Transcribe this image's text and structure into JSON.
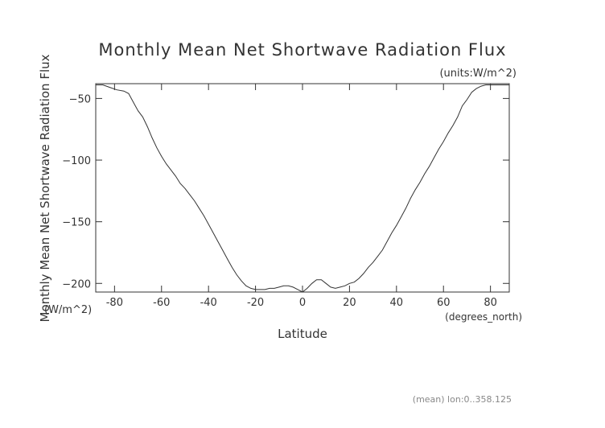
{
  "chart_data": {
    "type": "line",
    "title": "Monthly Mean Net Shortwave Radiation Flux",
    "units_note": "(units:W/m^2)",
    "ylabel": "Monthly Mean Net Shortwave Radiation Flux",
    "ylabel_units": "(W/m^2)",
    "xlabel": "Latitude",
    "xunits": "(degrees_north)",
    "footnote": "(mean) lon:0..358.125",
    "xlim": [
      -88,
      88
    ],
    "ylim": [
      -207,
      -38
    ],
    "x_ticks": [
      -80,
      -60,
      -40,
      -20,
      0,
      20,
      40,
      60,
      80
    ],
    "y_ticks": [
      -50,
      -100,
      -150,
      -200
    ],
    "grid": false,
    "series": [
      {
        "x": [
          -88,
          -85,
          -82,
          -79,
          -76,
          -74,
          -72,
          -70,
          -68,
          -66,
          -64,
          -62,
          -60,
          -58,
          -56,
          -54,
          -52,
          -50,
          -48,
          -46,
          -44,
          -42,
          -40,
          -38,
          -36,
          -34,
          -32,
          -30,
          -28,
          -26,
          -24,
          -22,
          -20,
          -18,
          -16,
          -14,
          -12,
          -10,
          -8,
          -6,
          -4,
          -2,
          0,
          2,
          4,
          6,
          8,
          10,
          12,
          14,
          16,
          18,
          20,
          22,
          24,
          26,
          28,
          30,
          32,
          34,
          36,
          38,
          40,
          42,
          44,
          46,
          48,
          50,
          52,
          54,
          56,
          58,
          60,
          62,
          64,
          66,
          68,
          70,
          72,
          74,
          76,
          78,
          80,
          82,
          84,
          86,
          88
        ],
        "y": [
          -39,
          -39,
          -41,
          -43,
          -44,
          -46,
          -53,
          -60,
          -65,
          -73,
          -82,
          -90,
          -97,
          -103,
          -108,
          -113,
          -119,
          -123,
          -128,
          -133,
          -139,
          -145,
          -152,
          -159,
          -166,
          -173,
          -180,
          -187,
          -193,
          -198,
          -202,
          -204,
          -205,
          -205,
          -205,
          -204,
          -204,
          -203,
          -202,
          -202,
          -203,
          -205,
          -207,
          -204,
          -200,
          -197,
          -197,
          -200,
          -203,
          -204,
          -203,
          -202,
          -200,
          -199,
          -196,
          -192,
          -187,
          -183,
          -178,
          -173,
          -166,
          -159,
          -153,
          -146,
          -139,
          -131,
          -124,
          -118,
          -111,
          -105,
          -98,
          -91,
          -85,
          -78,
          -72,
          -65,
          -56,
          -51,
          -45,
          -42,
          -40,
          -39,
          -39,
          -39,
          -39,
          -39,
          -39
        ]
      }
    ]
  }
}
